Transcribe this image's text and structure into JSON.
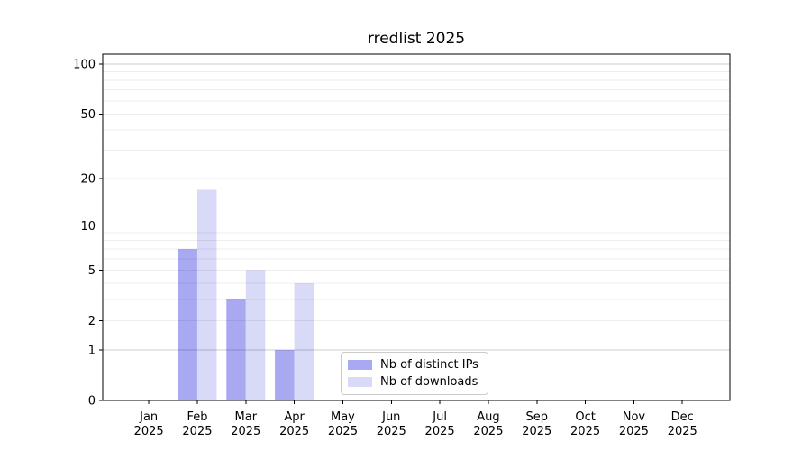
{
  "chart_data": {
    "type": "bar",
    "title": "rredlist 2025",
    "categories": [
      "Jan",
      "Feb",
      "Mar",
      "Apr",
      "May",
      "Jun",
      "Jul",
      "Aug",
      "Sep",
      "Oct",
      "Nov",
      "Dec"
    ],
    "x_tick_year": "2025",
    "series": [
      {
        "name": "Nb of distinct IPs",
        "color": "#a9a9f2",
        "values": [
          0,
          7,
          3,
          1,
          0,
          0,
          0,
          0,
          0,
          0,
          0,
          0
        ]
      },
      {
        "name": "Nb of downloads",
        "color": "#d9d9f8",
        "values": [
          0,
          17,
          5,
          4,
          0,
          0,
          0,
          0,
          0,
          0,
          0,
          0
        ]
      }
    ],
    "yscale": "log1p",
    "yticks": [
      0,
      1,
      2,
      5,
      10,
      20,
      50,
      100
    ],
    "ylim": [
      0,
      115
    ],
    "xlim": [
      -0.95,
      11.98
    ],
    "bar_width": 0.4,
    "grid": {
      "minor": [
        2,
        3,
        4,
        5,
        6,
        7,
        8,
        9,
        20,
        30,
        40,
        50,
        60,
        70,
        80,
        90
      ],
      "major": [
        1,
        10,
        100
      ],
      "minor_color": "rgba(0,0,0,0.07)",
      "major_color": "rgba(0,0,0,0.20)"
    },
    "legend_position": "lower center",
    "axis_color": "#000000",
    "background": "#ffffff"
  }
}
